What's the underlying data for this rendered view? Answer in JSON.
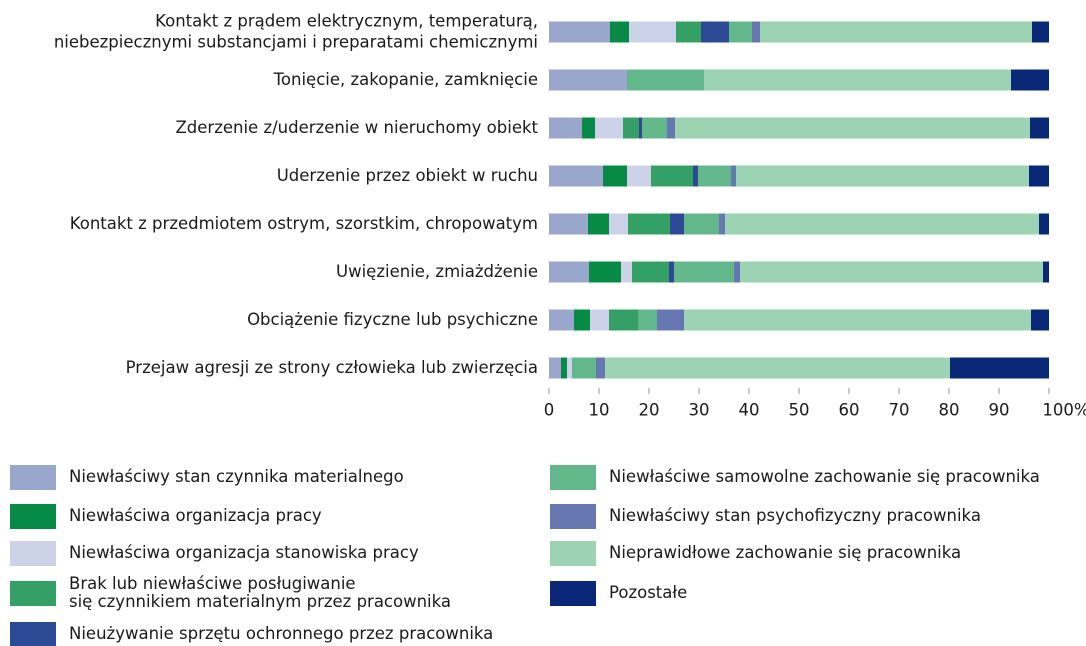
{
  "chart_data": {
    "type": "stacked-barh",
    "categories": [
      "Kontakt z prądem elektrycznym, temperaturą,\nniebezpiecznymi substancjami i preparatami chemicznymi",
      "Tonięcie, zakopanie, zamknięcie",
      "Zderzenie z/uderzenie w nieruchomy obiekt",
      "Uderzenie przez obiekt w ruchu",
      "Kontakt z przedmiotem ostrym, szorstkim, chropowatym",
      "Uwięzienie, zmiażdżenie",
      "Obciążenie fizyczne lub psychiczne",
      "Przejaw agresji ze strony człowieka lub zwierzęcia"
    ],
    "series": [
      {
        "name": "Niewłaściwy stan czynnika materialnego",
        "color": "#9aa7cd",
        "values": [
          12.2,
          15.6,
          6.6,
          10.8,
          7.8,
          8,
          5,
          2.4
        ]
      },
      {
        "name": "Niewłaściwa organizacja pracy",
        "color": "#078a46",
        "values": [
          3.8,
          0,
          2.6,
          4.8,
          4.2,
          6.4,
          3.2,
          1.2
        ]
      },
      {
        "name": "Niewłaściwa organizacja stanowiska pracy",
        "color": "#ccd2e7",
        "values": [
          9.4,
          0,
          5.6,
          4.8,
          3.8,
          2.2,
          3.8,
          1
        ]
      },
      {
        "name": "Brak lub niewłaściwe posługiwanie\nsię czynnikiem materialnym przez pracownika",
        "color": "#35a066",
        "values": [
          5,
          0,
          3.2,
          8.4,
          8.4,
          7.4,
          5.8,
          0
        ]
      },
      {
        "name": "Nieużywanie sprzętu ochronnego przez pracownika",
        "color": "#2d4a97",
        "values": [
          5.6,
          0,
          0.6,
          1,
          2.8,
          1,
          0,
          0
        ]
      },
      {
        "name": "Niewłaściwe samowolne zachowanie się pracownika",
        "color": "#62b88a",
        "values": [
          4.6,
          15.4,
          5,
          6.6,
          7,
          12,
          3.8,
          4.8
        ]
      },
      {
        "name": "Niewłaściwy stan psychofizyczny pracownika",
        "color": "#6777b1",
        "values": [
          1.6,
          0,
          1.6,
          1,
          1.2,
          1.2,
          5.4,
          1.8
        ]
      },
      {
        "name": "Nieprawidłowe zachowanie się pracownika",
        "color": "#9cd3b2",
        "values": [
          54.4,
          61.4,
          71,
          58.6,
          62.8,
          60.6,
          69.4,
          69
        ]
      },
      {
        "name": "Pozostałe",
        "color": "#0b2878",
        "values": [
          3.4,
          7.6,
          3.8,
          4,
          2,
          1.2,
          3.6,
          19.8
        ]
      }
    ],
    "xlim": [
      0,
      100
    ],
    "xticks": [
      0,
      10,
      20,
      30,
      40,
      50,
      60,
      70,
      80,
      90,
      {
        "value": 100,
        "label": "100%"
      }
    ]
  }
}
